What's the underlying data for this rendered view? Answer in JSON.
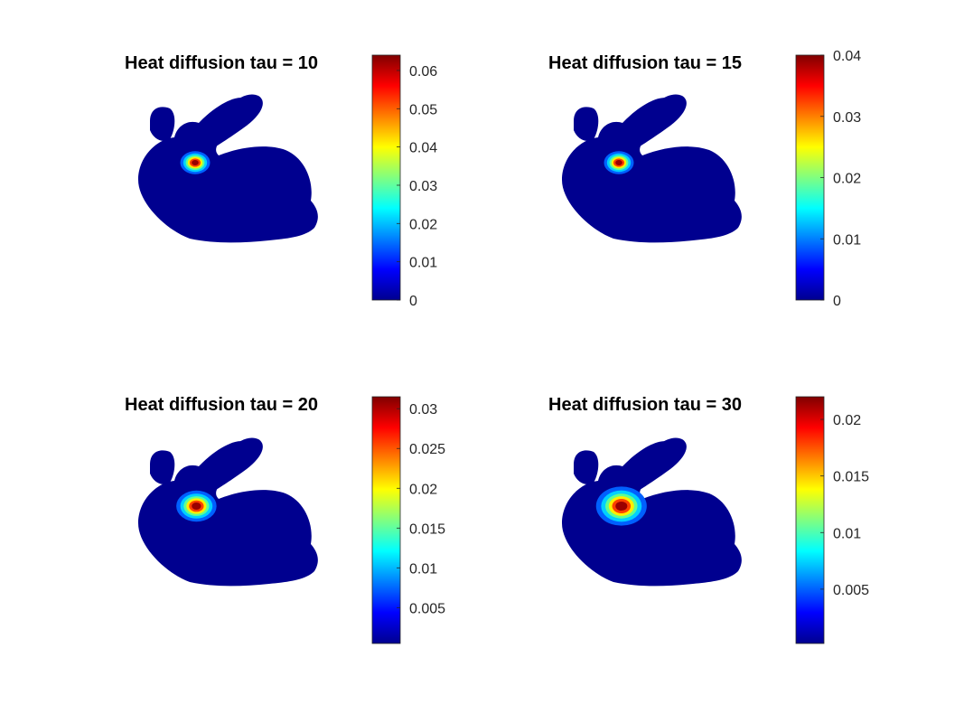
{
  "figure": {
    "colormap": "jet",
    "background": "#ffffff",
    "bunny_base_color": "#00008f"
  },
  "chart_data": [
    {
      "type": "scatter",
      "title": "Heat diffusion tau = 10",
      "tau": 10,
      "colorbar": {
        "min": 0,
        "max": 0.064,
        "ticks": [
          0,
          0.01,
          0.02,
          0.03,
          0.04,
          0.05,
          0.06
        ],
        "tick_labels": [
          "0",
          "0.01",
          "0.02",
          "0.03",
          "0.04",
          "0.05",
          "0.06"
        ]
      },
      "heat_source": {
        "peak_value": 0.064,
        "spread": "small"
      }
    },
    {
      "type": "scatter",
      "title": "Heat diffusion tau = 15",
      "tau": 15,
      "colorbar": {
        "min": 0,
        "max": 0.04,
        "ticks": [
          0,
          0.01,
          0.02,
          0.03,
          0.04
        ],
        "tick_labels": [
          "0",
          "0.01",
          "0.02",
          "0.03",
          "0.04"
        ]
      },
      "heat_source": {
        "peak_value": 0.04,
        "spread": "small"
      }
    },
    {
      "type": "scatter",
      "title": "Heat diffusion tau = 20",
      "tau": 20,
      "colorbar": {
        "min": 0.0005,
        "max": 0.0315,
        "ticks": [
          0.005,
          0.01,
          0.015,
          0.02,
          0.025,
          0.03
        ],
        "tick_labels": [
          "0.005",
          "0.01",
          "0.015",
          "0.02",
          "0.025",
          "0.03"
        ]
      },
      "heat_source": {
        "peak_value": 0.0315,
        "spread": "medium"
      }
    },
    {
      "type": "scatter",
      "title": "Heat diffusion tau = 30",
      "tau": 30,
      "colorbar": {
        "min": 0.0002,
        "max": 0.022,
        "ticks": [
          0.005,
          0.01,
          0.015,
          0.02
        ],
        "tick_labels": [
          "0.005",
          "0.01",
          "0.015",
          "0.02"
        ]
      },
      "heat_source": {
        "peak_value": 0.022,
        "spread": "large"
      }
    }
  ]
}
